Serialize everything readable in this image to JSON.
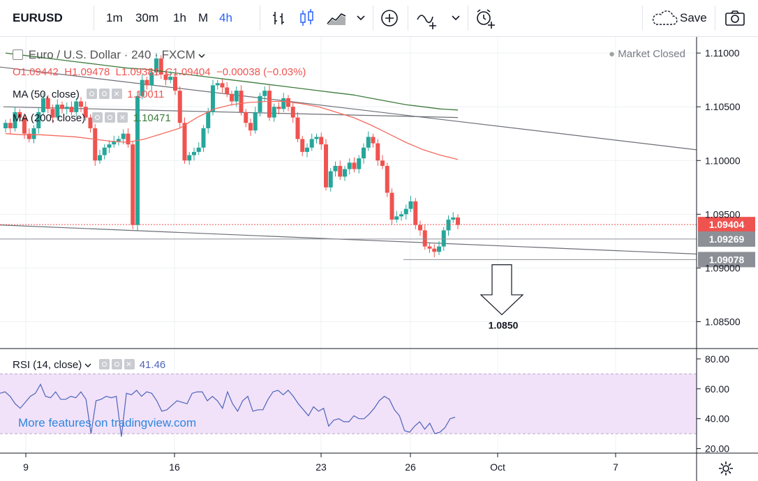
{
  "toolbar": {
    "symbol": "EURUSD",
    "intervals": [
      "1m",
      "30m",
      "1h",
      "M",
      "4h"
    ],
    "active_interval": "4h",
    "save_label": "Save",
    "icons": [
      "bar-chart-icon",
      "candles-icon",
      "area-chart-icon",
      "chevron-down-icon",
      "add-circle-icon",
      "indicators-icon",
      "alert-clock-icon",
      "cloud-save-icon",
      "camera-icon"
    ]
  },
  "legend": {
    "title": "Euro / U.S. Dollar · 240 · FXCM",
    "market_status": "Market Closed",
    "ohlc": {
      "o": "O1.09442",
      "h": "H1.09478",
      "l": "L1.09381",
      "c": "C1.09404",
      "chg": "−0.00038 (−0.03%)"
    },
    "ma50": {
      "label": "MA (50, close)",
      "value": "1.10011"
    },
    "ma200": {
      "label": "MA (200, close)",
      "value": "1.10471"
    },
    "rsi": {
      "label": "RSI (14, close)",
      "value": "41.46"
    }
  },
  "watermark": "More features on tradingview.com",
  "colors": {
    "up": "#26a69a",
    "down": "#ef5350",
    "ma50": "#f46b5e",
    "ma200": "#3d7a3a",
    "rsi": "#4e64b8",
    "rsi_band": "#f1e2f9",
    "accent": "#2962ff"
  },
  "chart_data": [
    {
      "type": "candlestick",
      "symbol": "EURUSD",
      "interval": "240",
      "ylim": [
        1.0825,
        1.1115
      ],
      "y_ticks": [
        "1.11000",
        "1.10500",
        "1.10000",
        "1.09500",
        "1.09000",
        "1.08500"
      ],
      "x_ticks": [
        "9",
        "16",
        "23",
        "26",
        "Oct",
        "7"
      ],
      "price_tags": [
        {
          "label": "1.09404",
          "value": 1.09404,
          "color": "#ef5350"
        },
        {
          "label": "1.09269",
          "value": 1.09269,
          "color": "#8c8f96"
        },
        {
          "label": "1.09078",
          "value": 1.09078,
          "color": "#8c8f96"
        }
      ],
      "target_annotation": {
        "label": "1.0850",
        "value": 1.085,
        "direction": "down"
      },
      "segments": [
        {
          "from": [
            1.1087,
            1.0963
          ],
          "to": [
            1.101,
            1.1039
          ]
        },
        {
          "from": [
            1.105,
            1.1003
          ],
          "to": [
            1.104,
            1.104
          ]
        },
        {
          "from": [
            1.094,
            1.0905
          ],
          "to": [
            1.0913,
            1.105
          ]
        }
      ],
      "candles_close": [
        1.1035,
        1.103,
        1.1045,
        1.104,
        1.1025,
        1.102,
        1.103,
        1.1045,
        1.1058,
        1.1048,
        1.104,
        1.1052,
        1.1048,
        1.105,
        1.1045,
        1.1055,
        1.105,
        1.104,
        1.103,
        1.1,
        1.1005,
        1.1012,
        1.1015,
        1.1018,
        1.102,
        1.1025,
        1.1015,
        1.094,
        1.106,
        1.1075,
        1.107,
        1.1082,
        1.1095,
        1.108,
        1.1075,
        1.1078,
        1.1065,
        1.1035,
        1.1,
        1.1005,
        1.1008,
        1.1012,
        1.103,
        1.1045,
        1.107,
        1.1072,
        1.1068,
        1.1062,
        1.1055,
        1.1065,
        1.1045,
        1.1035,
        1.1028,
        1.1045,
        1.106,
        1.1065,
        1.104,
        1.105,
        1.1048,
        1.1058,
        1.105,
        1.104,
        1.102,
        1.1008,
        1.1012,
        1.102,
        1.1022,
        1.1015,
        1.0975,
        1.099,
        1.0995,
        1.0985,
        1.0992,
        1.0998,
        1.0992,
        1.1002,
        1.1012,
        1.1022,
        1.1016,
        1.1,
        1.0995,
        1.097,
        1.0945,
        1.0948,
        1.095,
        1.0955,
        1.0962,
        1.094,
        1.0935,
        1.092,
        1.0918,
        1.0915,
        1.092,
        1.0935,
        1.0945,
        1.0947,
        1.094
      ],
      "ma50": [
        1.1025,
        1.1024,
        1.1024,
        1.1023,
        1.1022,
        1.102,
        1.1018,
        1.1017,
        1.102,
        1.1025,
        1.103,
        1.104,
        1.1048,
        1.1052,
        1.1054,
        1.1055,
        1.1055,
        1.1053,
        1.105,
        1.1045,
        1.104,
        1.1033,
        1.1025,
        1.1017,
        1.101,
        1.1005,
        1.1001
      ],
      "ma200": [
        1.11,
        1.1098,
        1.1096,
        1.1094,
        1.1092,
        1.109,
        1.1088,
        1.1086,
        1.1085,
        1.1083,
        1.1081,
        1.1079,
        1.1077,
        1.1075,
        1.1073,
        1.1071,
        1.1069,
        1.1067,
        1.1065,
        1.1063,
        1.1061,
        1.1058,
        1.1055,
        1.1052,
        1.105,
        1.1048,
        1.1047
      ],
      "series": [
        {
          "name": "MA (50, close)",
          "values_ref": "ma50"
        },
        {
          "name": "MA (200, close)",
          "values_ref": "ma200"
        }
      ]
    },
    {
      "type": "line",
      "name": "RSI (14, close)",
      "ylim": [
        17,
        86
      ],
      "y_ticks": [
        "80.00",
        "60.00",
        "40.00",
        "20.00"
      ],
      "band": [
        30,
        70
      ],
      "values": [
        57,
        58,
        55,
        50,
        47,
        51,
        55,
        57,
        63,
        55,
        54,
        58,
        53,
        53,
        55,
        54,
        58,
        53,
        30,
        52,
        53,
        55,
        54,
        55,
        28,
        57,
        56,
        59,
        55,
        58,
        57,
        52,
        45,
        46,
        49,
        52,
        51,
        50,
        57,
        58,
        58,
        52,
        55,
        52,
        47,
        58,
        50,
        45,
        52,
        55,
        45,
        46,
        46,
        53,
        58,
        59,
        56,
        59,
        55,
        50,
        46,
        42,
        48,
        45,
        47,
        35,
        39,
        40,
        38,
        38,
        42,
        40,
        40,
        43,
        47,
        52,
        55,
        53,
        46,
        42,
        32,
        31,
        35,
        38,
        33,
        37,
        30,
        31,
        34,
        40,
        41
      ]
    }
  ]
}
